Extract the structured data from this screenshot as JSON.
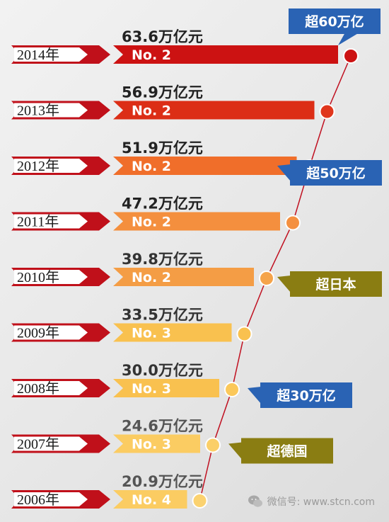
{
  "chart_data": {
    "type": "bar",
    "categories": [
      "2014年",
      "2013年",
      "2012年",
      "2011年",
      "2010年",
      "2009年",
      "2008年",
      "2007年",
      "2006年"
    ],
    "values": [
      63.6,
      56.9,
      51.9,
      47.2,
      39.8,
      33.5,
      30.0,
      24.6,
      20.9
    ],
    "value_labels": [
      "63.6万亿元",
      "56.9万亿元",
      "51.9万亿元",
      "47.2万亿元",
      "39.8万亿元",
      "33.5万亿元",
      "30.0万亿元",
      "24.6万亿元",
      "20.9万亿元"
    ],
    "rank_labels": [
      "No. 2",
      "No. 2",
      "No. 2",
      "No. 2",
      "No. 2",
      "No. 3",
      "No. 3",
      "No. 3",
      "No. 4"
    ],
    "bar_colors": [
      "#cc1212",
      "#dc2e16",
      "#f06e2a",
      "#f48f3e",
      "#f49d45",
      "#f9c14f",
      "#f9c14f",
      "#fbcc62",
      "#fbcc62"
    ],
    "value_label_colors": [
      "#222222",
      "#222222",
      "#222222",
      "#222222",
      "#333333",
      "#333333",
      "#333333",
      "#555555",
      "#555555"
    ],
    "dot_colors": [
      "#cc1212",
      "#e0361c",
      "#f27a30",
      "#f49040",
      "#f5a44b",
      "#f9c14f",
      "#fbc85a",
      "#fbcf68",
      "#fbd270"
    ],
    "callouts": [
      {
        "text": "超60万亿",
        "year": "2014年",
        "color": "#2a63b4"
      },
      {
        "text": "超50万亿",
        "year": "2012年",
        "color": "#2a63b4"
      },
      {
        "text": "超日本",
        "year": "2010年",
        "color": "#8a7d12"
      },
      {
        "text": "超30万亿",
        "year": "2008年",
        "color": "#2a63b4"
      },
      {
        "text": "超德国",
        "year": "2007年",
        "color": "#8a7d12"
      }
    ],
    "arrow_color": "#c0101a",
    "line_color": "#c01020"
  },
  "watermark": {
    "icon": "wechat-icon",
    "text": "微信号: www.stcn.com"
  }
}
